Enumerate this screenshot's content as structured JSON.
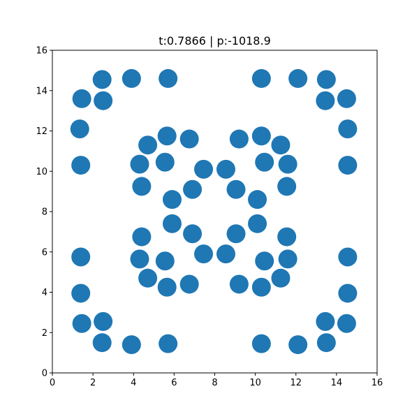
{
  "chart_data": {
    "type": "scatter",
    "title": "t:0.7866 | p:-1018.9",
    "xlabel": "",
    "ylabel": "",
    "xlim": [
      0,
      16
    ],
    "ylim": [
      0,
      16
    ],
    "x_ticks": [
      "0",
      "2",
      "4",
      "6",
      "8",
      "10",
      "12",
      "14",
      "16"
    ],
    "y_ticks": [
      "0",
      "2",
      "4",
      "6",
      "8",
      "10",
      "12",
      "14",
      "16"
    ],
    "grid": false,
    "series": [
      {
        "color": "#1f77b4",
        "points": [
          [
            1.45,
            13.6
          ],
          [
            2.45,
            14.55
          ],
          [
            3.9,
            14.6
          ],
          [
            5.7,
            14.6
          ],
          [
            10.3,
            14.6
          ],
          [
            12.1,
            14.6
          ],
          [
            13.5,
            14.55
          ],
          [
            14.5,
            13.6
          ],
          [
            2.5,
            13.5
          ],
          [
            13.45,
            13.5
          ],
          [
            1.35,
            12.1
          ],
          [
            14.55,
            12.1
          ],
          [
            1.4,
            10.3
          ],
          [
            14.55,
            10.3
          ],
          [
            1.4,
            5.75
          ],
          [
            14.55,
            5.75
          ],
          [
            1.4,
            3.95
          ],
          [
            14.55,
            3.95
          ],
          [
            1.45,
            2.45
          ],
          [
            2.5,
            2.55
          ],
          [
            13.45,
            2.55
          ],
          [
            14.5,
            2.45
          ],
          [
            2.45,
            1.5
          ],
          [
            3.9,
            1.4
          ],
          [
            5.7,
            1.45
          ],
          [
            10.3,
            1.45
          ],
          [
            12.1,
            1.4
          ],
          [
            13.5,
            1.5
          ],
          [
            5.65,
            11.75
          ],
          [
            6.75,
            11.6
          ],
          [
            9.2,
            11.6
          ],
          [
            10.3,
            11.75
          ],
          [
            4.7,
            11.3
          ],
          [
            11.25,
            11.3
          ],
          [
            4.3,
            10.35
          ],
          [
            5.55,
            10.45
          ],
          [
            7.45,
            10.1
          ],
          [
            8.55,
            10.1
          ],
          [
            10.45,
            10.45
          ],
          [
            11.6,
            10.35
          ],
          [
            4.4,
            9.25
          ],
          [
            6.9,
            9.1
          ],
          [
            9.05,
            9.1
          ],
          [
            11.55,
            9.25
          ],
          [
            5.9,
            8.6
          ],
          [
            10.1,
            8.6
          ],
          [
            5.9,
            7.4
          ],
          [
            10.1,
            7.4
          ],
          [
            4.4,
            6.75
          ],
          [
            6.9,
            6.9
          ],
          [
            9.05,
            6.9
          ],
          [
            11.55,
            6.75
          ],
          [
            7.45,
            5.9
          ],
          [
            8.55,
            5.9
          ],
          [
            4.3,
            5.65
          ],
          [
            5.55,
            5.55
          ],
          [
            10.45,
            5.55
          ],
          [
            11.6,
            5.65
          ],
          [
            4.7,
            4.7
          ],
          [
            11.25,
            4.7
          ],
          [
            5.65,
            4.25
          ],
          [
            6.75,
            4.4
          ],
          [
            9.2,
            4.4
          ],
          [
            10.3,
            4.25
          ]
        ]
      }
    ]
  }
}
